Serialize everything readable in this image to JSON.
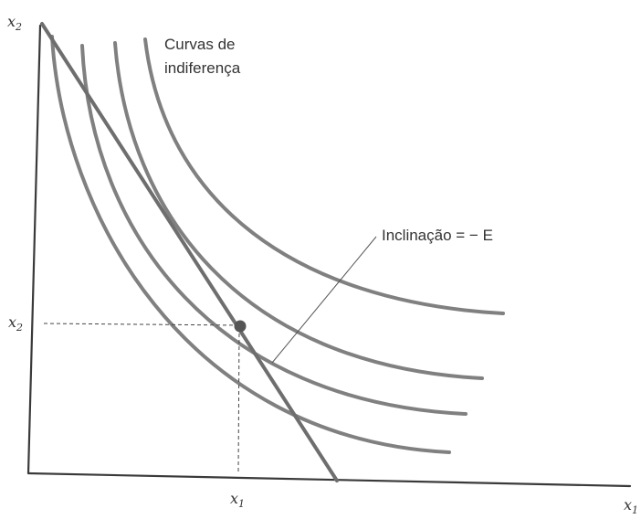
{
  "axes": {
    "y_label": "x",
    "y_sub": "2",
    "x_label": "x",
    "x_sub": "1"
  },
  "tangency": {
    "x_label": "x",
    "x_sub": "1",
    "y_label": "x",
    "y_sub": "2"
  },
  "annotations": {
    "curves_line1": "Curvas de",
    "curves_line2": "indiferença",
    "slope_label": "Inclinação = − E"
  },
  "colors": {
    "curves": "#808080",
    "budget_line": "#6e6e6e",
    "point": "#555555"
  }
}
